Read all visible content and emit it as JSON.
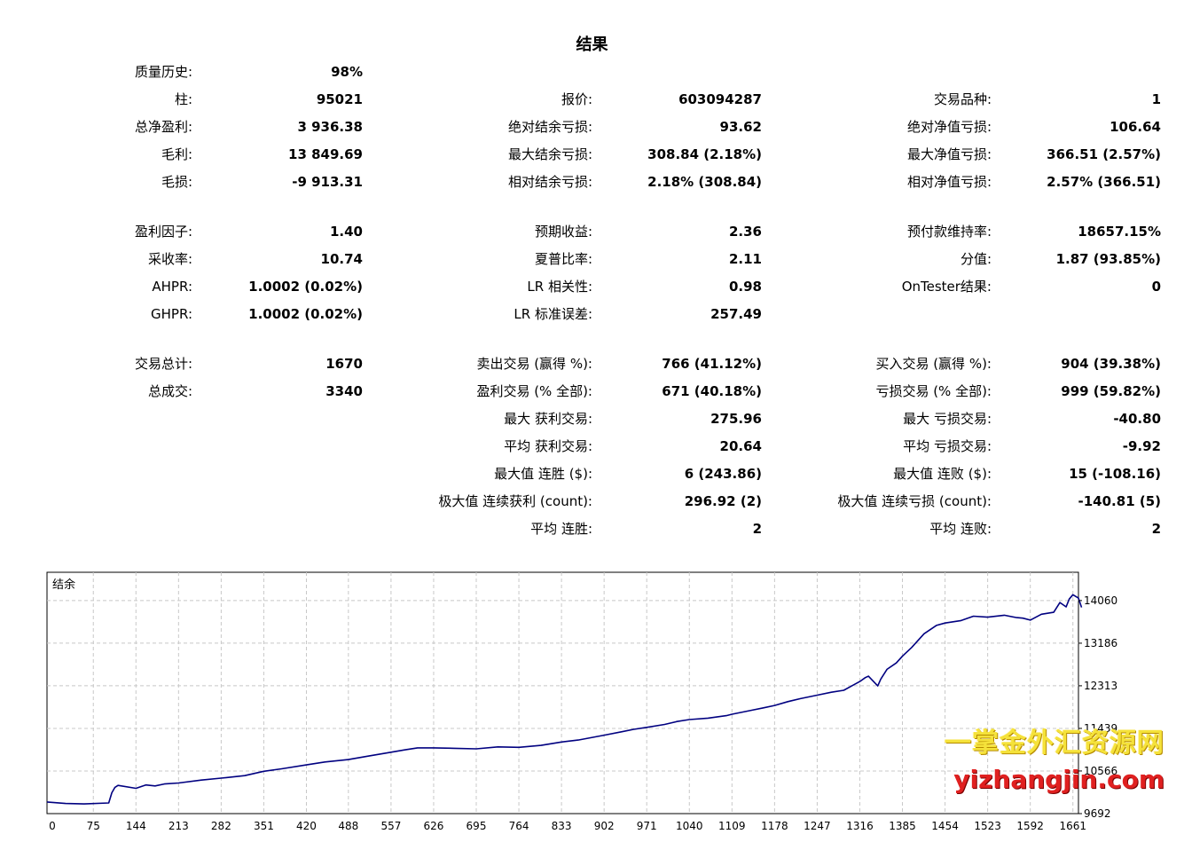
{
  "title": "结果",
  "stats": {
    "quality_history": {
      "label": "质量历史:",
      "value": "98%"
    },
    "bars": {
      "label": "柱:",
      "value": "95021"
    },
    "ticks": {
      "label": "报价:",
      "value": "603094287"
    },
    "symbols": {
      "label": "交易品种:",
      "value": "1"
    },
    "total_net_profit": {
      "label": "总净盈利:",
      "value": "3 936.38"
    },
    "balance_dd_abs": {
      "label": "绝对结余亏损:",
      "value": "93.62"
    },
    "equity_dd_abs": {
      "label": "绝对净值亏损:",
      "value": "106.64"
    },
    "gross_profit": {
      "label": "毛利:",
      "value": "13 849.69"
    },
    "balance_dd_max": {
      "label": "最大结余亏损:",
      "value": "308.84 (2.18%)"
    },
    "equity_dd_max": {
      "label": "最大净值亏损:",
      "value": "366.51 (2.57%)"
    },
    "gross_loss": {
      "label": "毛损:",
      "value": "-9 913.31"
    },
    "balance_dd_rel": {
      "label": "相对结余亏损:",
      "value": "2.18% (308.84)"
    },
    "equity_dd_rel": {
      "label": "相对净值亏损:",
      "value": "2.57% (366.51)"
    },
    "profit_factor": {
      "label": "盈利因子:",
      "value": "1.40"
    },
    "expected_payoff": {
      "label": "预期收益:",
      "value": "2.36"
    },
    "margin_level": {
      "label": "预付款维持率:",
      "value": "18657.15%"
    },
    "recovery_factor": {
      "label": "采收率:",
      "value": "10.74"
    },
    "sharpe_ratio": {
      "label": "夏普比率:",
      "value": "2.11"
    },
    "z_score": {
      "label": "分值:",
      "value": "1.87 (93.85%)"
    },
    "ahpr": {
      "label": "AHPR:",
      "value": "1.0002 (0.02%)"
    },
    "lr_correlation": {
      "label": "LR 相关性:",
      "value": "0.98"
    },
    "ontester": {
      "label": "OnTester结果:",
      "value": "0"
    },
    "ghpr": {
      "label": "GHPR:",
      "value": "1.0002 (0.02%)"
    },
    "lr_std_error": {
      "label": "LR 标准误差:",
      "value": "257.49"
    },
    "total_trades": {
      "label": "交易总计:",
      "value": "1670"
    },
    "short_trades": {
      "label": "卖出交易 (赢得 %):",
      "value": "766 (41.12%)"
    },
    "long_trades": {
      "label": "买入交易 (赢得 %):",
      "value": "904 (39.38%)"
    },
    "total_deals": {
      "label": "总成交:",
      "value": "3340"
    },
    "profit_trades": {
      "label": "盈利交易 (% 全部):",
      "value": "671 (40.18%)"
    },
    "loss_trades": {
      "label": "亏损交易 (% 全部):",
      "value": "999 (59.82%)"
    },
    "largest_profit": {
      "label": "最大 获利交易:",
      "value": "275.96"
    },
    "largest_loss": {
      "label": "最大 亏损交易:",
      "value": "-40.80"
    },
    "avg_profit": {
      "label": "平均 获利交易:",
      "value": "20.64"
    },
    "avg_loss": {
      "label": "平均 亏损交易:",
      "value": "-9.92"
    },
    "max_consec_wins": {
      "label": "最大值 连胜 ($):",
      "value": "6 (243.86)"
    },
    "max_consec_losses": {
      "label": "最大值 连败 ($):",
      "value": "15 (-108.16)"
    },
    "maximal_consec_profit": {
      "label": "极大值 连续获利 (count):",
      "value": "296.92 (2)"
    },
    "maximal_consec_loss": {
      "label": "极大值 连续亏损 (count):",
      "value": "-140.81 (5)"
    },
    "avg_consec_wins": {
      "label": "平均 连胜:",
      "value": "2"
    },
    "avg_consec_losses": {
      "label": "平均 连败:",
      "value": "2"
    }
  },
  "chart_data": {
    "type": "line",
    "title": "结余",
    "xlabel": "",
    "ylabel": "",
    "x_ticks": [
      0,
      75,
      144,
      213,
      282,
      351,
      420,
      488,
      557,
      626,
      695,
      764,
      833,
      902,
      971,
      1040,
      1109,
      1178,
      1247,
      1316,
      1385,
      1454,
      1523,
      1592,
      1661
    ],
    "y_ticks": [
      9692,
      10566,
      11439,
      12313,
      13186,
      14060
    ],
    "xlim": [
      0,
      1670
    ],
    "ylim": [
      9692,
      14640
    ],
    "grid": true,
    "line_color": "#000080",
    "series": [
      {
        "name": "",
        "x": [
          0,
          30,
          60,
          100,
          105,
          110,
          115,
          144,
          160,
          175,
          190,
          213,
          250,
          282,
          320,
          351,
          380,
          420,
          450,
          488,
          520,
          557,
          580,
          600,
          626,
          660,
          695,
          730,
          764,
          800,
          833,
          860,
          902,
          930,
          950,
          971,
          1000,
          1020,
          1040,
          1070,
          1100,
          1109,
          1140,
          1160,
          1178,
          1200,
          1220,
          1247,
          1270,
          1290,
          1300,
          1316,
          1325,
          1330,
          1345,
          1350,
          1360,
          1375,
          1385,
          1400,
          1420,
          1440,
          1454,
          1480,
          1500,
          1523,
          1550,
          1570,
          1580,
          1592,
          1610,
          1630,
          1640,
          1650,
          1655,
          1661,
          1670,
          1675
        ],
        "y": [
          9930,
          9900,
          9890,
          9910,
          10120,
          10230,
          10270,
          10210,
          10280,
          10260,
          10300,
          10320,
          10380,
          10420,
          10470,
          10560,
          10610,
          10690,
          10750,
          10800,
          10870,
          10950,
          11000,
          11040,
          11040,
          11030,
          11020,
          11060,
          11050,
          11090,
          11160,
          11200,
          11300,
          11370,
          11420,
          11460,
          11520,
          11580,
          11620,
          11650,
          11700,
          11730,
          11810,
          11860,
          11910,
          11990,
          12050,
          12120,
          12180,
          12220,
          12290,
          12400,
          12480,
          12510,
          12310,
          12450,
          12650,
          12780,
          12920,
          13100,
          13380,
          13550,
          13600,
          13650,
          13740,
          13720,
          13760,
          13710,
          13700,
          13660,
          13780,
          13820,
          14020,
          13930,
          14090,
          14180,
          14110,
          13920
        ]
      }
    ]
  },
  "watermark": {
    "line1": "一掌金外汇资源网",
    "line2": "yizhangjin.com"
  }
}
